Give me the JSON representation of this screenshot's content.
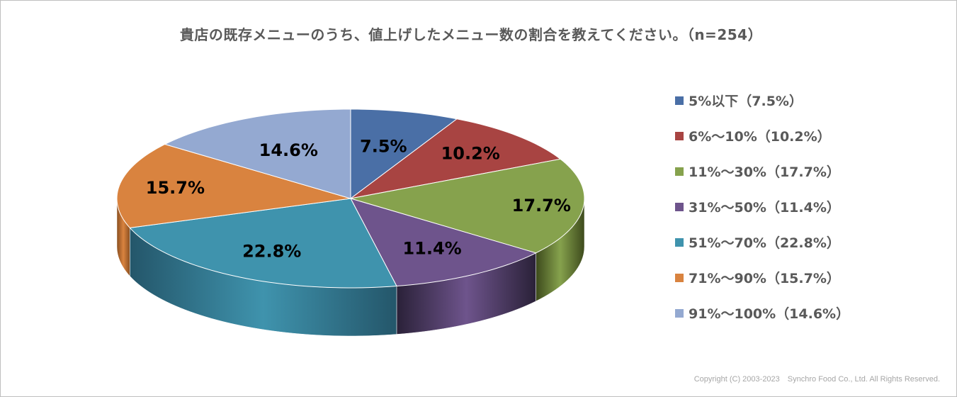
{
  "chart_data": {
    "type": "pie",
    "title": "貴店の既存メニューのうち、値上げしたメニュー数の割合を教えてください。（n=254）",
    "slices": [
      {
        "label": "5%以下",
        "value": 7.5,
        "data_label": "7.5%",
        "legend": "5%以下（7.5%）",
        "color": "#4a6fa6",
        "side_color": "#2e4a73"
      },
      {
        "label": "6%～10%",
        "value": 10.2,
        "data_label": "10.2%",
        "legend": "6%～10%（10.2%）",
        "color": "#a84442",
        "side_color": "#6e2826"
      },
      {
        "label": "11%～30%",
        "value": 17.7,
        "data_label": "17.7%",
        "legend": "11%～30%（17.7%）",
        "color": "#86a24d",
        "side_color": "#3d4a1c"
      },
      {
        "label": "31%～50%",
        "value": 11.4,
        "data_label": "11.4%",
        "legend": "31%～50%（11.4%）",
        "color": "#6e548c",
        "side_color": "#2a2138"
      },
      {
        "label": "51%～70%",
        "value": 22.8,
        "data_label": "22.8%",
        "legend": "51%～70%（22.8%）",
        "color": "#3f93ad",
        "side_color": "#24566a"
      },
      {
        "label": "71%～90%",
        "value": 15.7,
        "data_label": "15.7%",
        "legend": "71%～90%（15.7%）",
        "color": "#d9833f",
        "side_color": "#8a4f20"
      },
      {
        "label": "91%～100%",
        "value": 14.6,
        "data_label": "14.6%",
        "legend": "91%～100%（14.6%）",
        "color": "#94a9d1",
        "side_color": "#5d6f94"
      }
    ],
    "legend_position": "right"
  },
  "footer": {
    "copyright": "Copyright (C) 2003-2023　Synchro Food Co., Ltd. All Rights Reserved."
  }
}
